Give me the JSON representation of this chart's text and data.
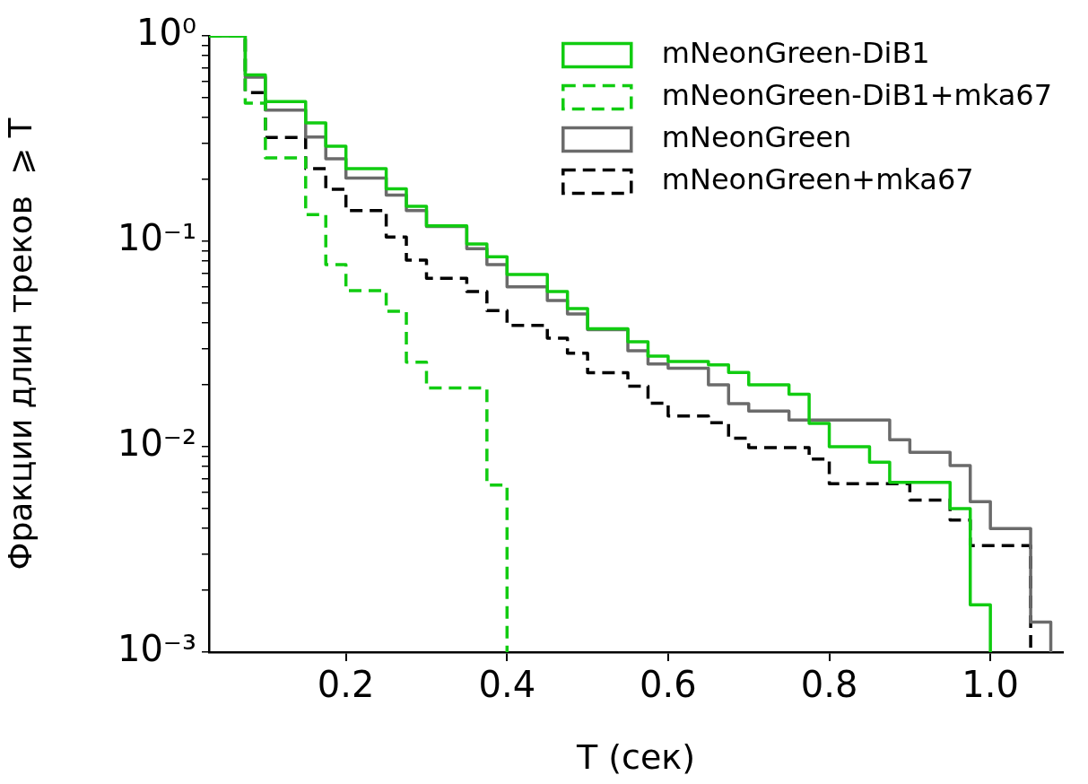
{
  "chart_data": {
    "type": "step",
    "xlabel": "T (сек)",
    "ylabel": "Фракции длин треков  ⩾ T",
    "xlim": [
      0.03,
      1.09
    ],
    "xticks": [
      0.2,
      0.4,
      0.6,
      0.8,
      {
        "value": 1,
        "label": "1.0"
      }
    ],
    "ylim": [
      0.001,
      1
    ],
    "yticks": [
      {
        "value": 0.001,
        "label": "10⁻³"
      },
      {
        "value": 0.002,
        "label": null
      },
      {
        "value": 0.003,
        "label": null
      },
      {
        "value": 0.004,
        "label": null
      },
      {
        "value": 0.005,
        "label": null
      },
      {
        "value": 0.006,
        "label": null
      },
      {
        "value": 0.007,
        "label": null
      },
      {
        "value": 0.008,
        "label": null
      },
      {
        "value": 0.009,
        "label": null
      },
      {
        "value": 0.01,
        "label": "10⁻²"
      },
      {
        "value": 0.02,
        "label": null
      },
      {
        "value": 0.03,
        "label": null
      },
      {
        "value": 0.04,
        "label": null
      },
      {
        "value": 0.05,
        "label": null
      },
      {
        "value": 0.06,
        "label": null
      },
      {
        "value": 0.07,
        "label": null
      },
      {
        "value": 0.08,
        "label": null
      },
      {
        "value": 0.09,
        "label": null
      },
      {
        "value": 0.1,
        "label": "10⁻¹"
      },
      {
        "value": 0.2,
        "label": null
      },
      {
        "value": 0.3,
        "label": null
      },
      {
        "value": 0.4,
        "label": null
      },
      {
        "value": 0.5,
        "label": null
      },
      {
        "value": 0.6,
        "label": null
      },
      {
        "value": 0.7,
        "label": null
      },
      {
        "value": 0.8,
        "label": null
      },
      {
        "value": 0.9,
        "label": null
      },
      {
        "value": 1,
        "label": "10⁰"
      }
    ],
    "log": "y",
    "grid": false,
    "legend": "top right",
    "series": [
      {
        "name": "mNeonGreen-DiB1",
        "color": "#11cc11",
        "line_style": "solid",
        "x": [
          0.03,
          0.075,
          0.1,
          0.15,
          0.175,
          0.2,
          0.25,
          0.275,
          0.3,
          0.35,
          0.375,
          0.4,
          0.45,
          0.475,
          0.5,
          0.55,
          0.575,
          0.6,
          0.65,
          0.675,
          0.7,
          0.75,
          0.775,
          0.8,
          0.85,
          0.875,
          0.95,
          0.975,
          1.0
        ],
        "values": [
          1,
          0.645,
          0.479,
          0.377,
          0.29,
          0.226,
          0.18,
          0.148,
          0.119,
          0.097,
          0.084,
          0.069,
          0.057,
          0.047,
          0.0375,
          0.0324,
          0.0276,
          0.026,
          0.025,
          0.023,
          0.02,
          0.018,
          0.013,
          0.01,
          0.0084,
          0.0067,
          0.005,
          0.0017,
          0.001
        ]
      },
      {
        "name": "mNeonGreen-DiB1+mka67",
        "color": "#11cc11",
        "line_style": "dashed",
        "x": [
          0.03,
          0.075,
          0.1,
          0.15,
          0.175,
          0.2,
          0.25,
          0.275,
          0.3,
          0.375,
          0.4
        ],
        "values": [
          1,
          0.47,
          0.255,
          0.135,
          0.077,
          0.0575,
          0.0456,
          0.0258,
          0.0193,
          0.0065,
          0.001
        ]
      },
      {
        "name": "mNeonGreen",
        "color": "#6b6b6b",
        "line_style": "solid",
        "x": [
          0.03,
          0.075,
          0.1,
          0.15,
          0.175,
          0.2,
          0.25,
          0.275,
          0.3,
          0.35,
          0.375,
          0.4,
          0.45,
          0.475,
          0.5,
          0.55,
          0.575,
          0.6,
          0.65,
          0.675,
          0.7,
          0.75,
          0.875,
          0.9,
          0.95,
          0.975,
          1.0,
          1.05,
          1.075
        ],
        "values": [
          1,
          0.63,
          0.435,
          0.322,
          0.252,
          0.203,
          0.168,
          0.141,
          0.118,
          0.092,
          0.077,
          0.06,
          0.0515,
          0.0443,
          0.0371,
          0.0293,
          0.0253,
          0.0241,
          0.02,
          0.0162,
          0.0149,
          0.0135,
          0.0108,
          0.0094,
          0.0081,
          0.0054,
          0.004,
          0.0014,
          0.001
        ]
      },
      {
        "name": "mNeonGreen+mka67",
        "color": "#000000",
        "line_style": "dashed",
        "x": [
          0.03,
          0.075,
          0.1,
          0.15,
          0.175,
          0.2,
          0.25,
          0.275,
          0.3,
          0.35,
          0.375,
          0.4,
          0.45,
          0.475,
          0.5,
          0.55,
          0.575,
          0.6,
          0.65,
          0.675,
          0.7,
          0.775,
          0.8,
          0.9,
          0.95,
          0.975,
          1.05
        ],
        "values": [
          1,
          0.53,
          0.32,
          0.226,
          0.179,
          0.141,
          0.105,
          0.081,
          0.066,
          0.057,
          0.046,
          0.039,
          0.0338,
          0.0285,
          0.0229,
          0.0197,
          0.0163,
          0.0141,
          0.0131,
          0.011,
          0.0099,
          0.0087,
          0.0066,
          0.0055,
          0.0044,
          0.0033,
          0.001
        ]
      }
    ]
  }
}
